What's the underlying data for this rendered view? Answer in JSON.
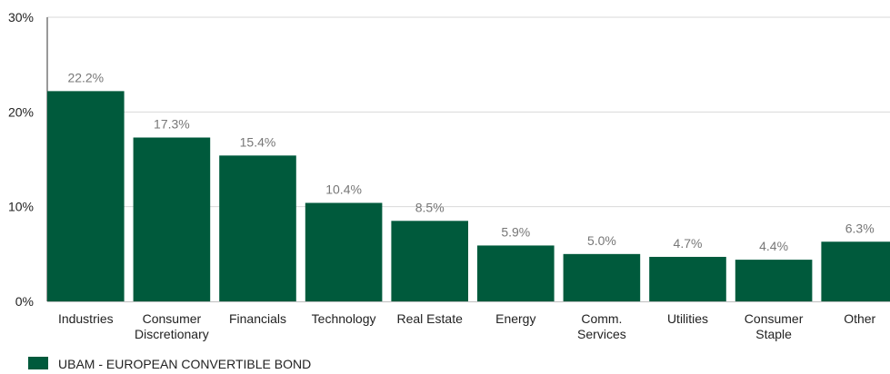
{
  "chart_data": {
    "type": "bar",
    "categories": [
      [
        "Industries"
      ],
      [
        "Consumer",
        "Discretionary"
      ],
      [
        "Financials"
      ],
      [
        "Technology"
      ],
      [
        "Real Estate"
      ],
      [
        "Energy"
      ],
      [
        "Comm.",
        "Services"
      ],
      [
        "Utilities"
      ],
      [
        "Consumer",
        "Staple"
      ],
      [
        "Other"
      ]
    ],
    "values": [
      22.2,
      17.3,
      15.4,
      10.4,
      8.5,
      5.9,
      5.0,
      4.7,
      4.4,
      6.3
    ],
    "data_labels": [
      "22.2%",
      "17.3%",
      "15.4%",
      "10.4%",
      "8.5%",
      "5.9%",
      "5.0%",
      "4.7%",
      "4.4%",
      "6.3%"
    ],
    "ylim": [
      0,
      30
    ],
    "yticks": [
      0,
      10,
      20,
      30
    ],
    "ytick_labels": [
      "0%",
      "10%",
      "20%",
      "30%"
    ],
    "grid": true,
    "legend_position": "bottom-left",
    "series": [
      {
        "name": "UBAM - EUROPEAN CONVERTIBLE BOND",
        "color": "#005a3c"
      }
    ],
    "colors": {
      "bar": "#005a3c",
      "grid": "#d9d9d9",
      "axis": "#333333",
      "label": "#222222",
      "value_label": "#777777"
    }
  }
}
